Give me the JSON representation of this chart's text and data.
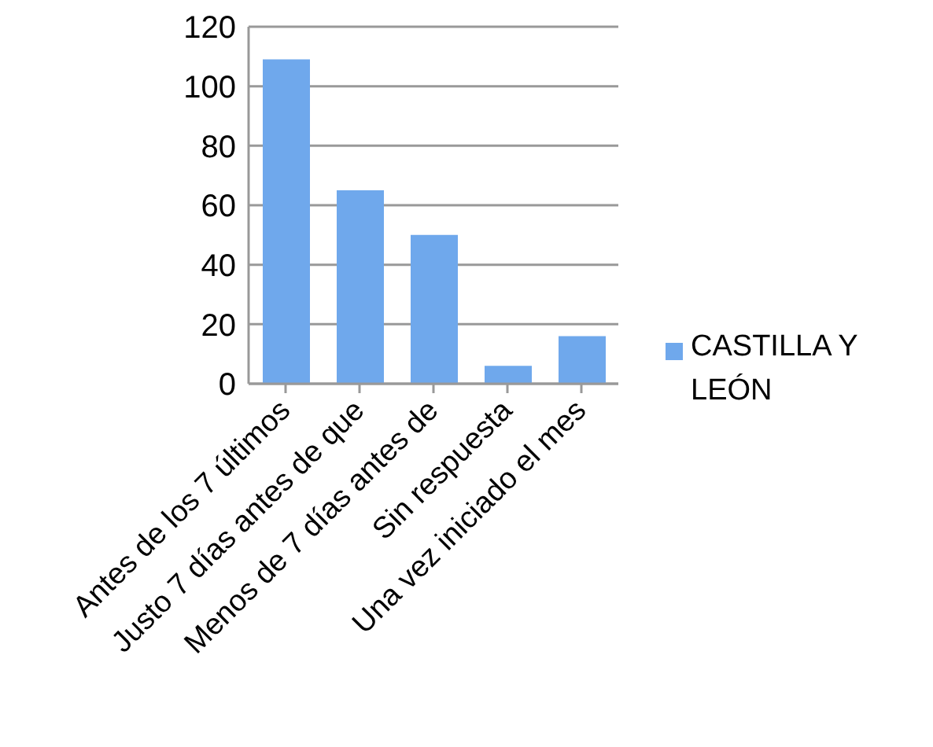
{
  "chart_data": {
    "type": "bar",
    "categories": [
      "Antes de los 7 últimos",
      "Justo 7 días antes de que",
      "Menos de 7 días antes de",
      "Sin respuesta",
      "Una vez iniciado el mes"
    ],
    "series": [
      {
        "name": "CASTILLA Y LEÓN",
        "color": "#6fa8ec",
        "values": [
          109,
          65,
          50,
          6,
          16
        ]
      }
    ],
    "ylim": [
      0,
      120
    ],
    "yticks": [
      0,
      20,
      40,
      60,
      80,
      100,
      120
    ],
    "grid": "y",
    "legend": "right"
  }
}
